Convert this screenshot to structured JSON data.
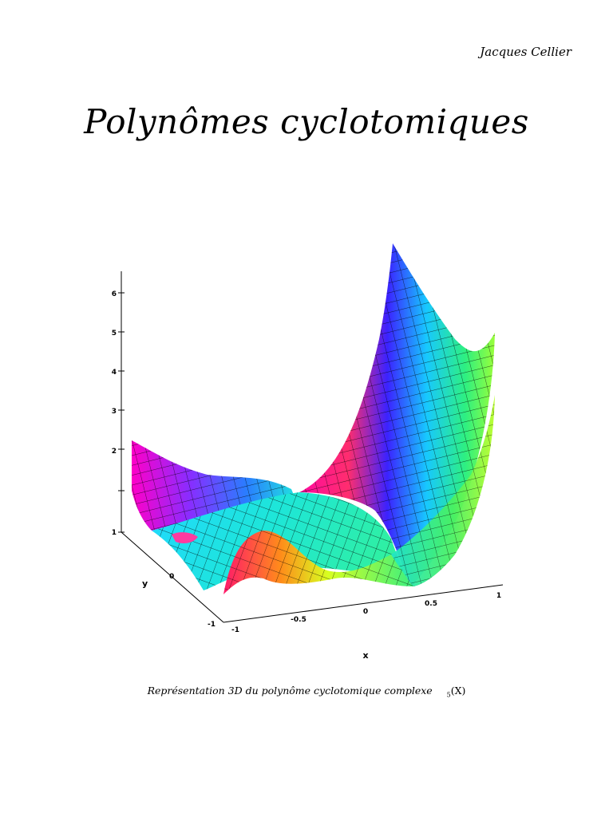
{
  "author": "Jacques Cellier",
  "title": "Polynômes cyclotomiques",
  "figure": {
    "z_ticks": [
      "1",
      "2",
      "3",
      "4",
      "5",
      "6"
    ],
    "y_ticks": [
      "-1",
      "0"
    ],
    "x_ticks": [
      "-1",
      "-0.5",
      "0",
      "0.5",
      "1"
    ],
    "x_label": "x",
    "y_label": "y"
  },
  "caption": {
    "text": "Représentation 3D du polynôme cyclotomique complexe",
    "index": "5",
    "arg": "(X)"
  }
}
